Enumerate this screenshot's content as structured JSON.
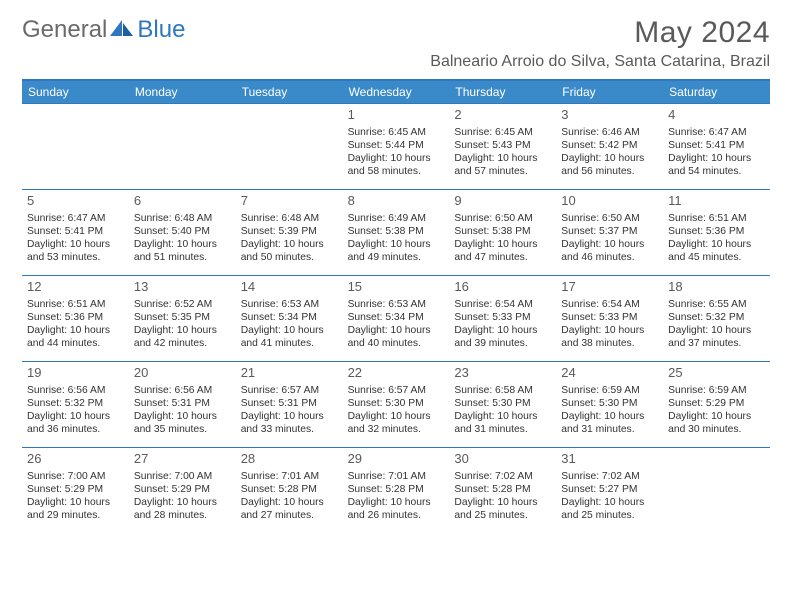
{
  "logo": {
    "text1": "General",
    "text2": "Blue"
  },
  "title": "May 2024",
  "location": "Balneario Arroio do Silva, Santa Catarina, Brazil",
  "day_headers": [
    "Sunday",
    "Monday",
    "Tuesday",
    "Wednesday",
    "Thursday",
    "Friday",
    "Saturday"
  ],
  "colors": {
    "brand_blue": "#3a8ac9",
    "rule_blue": "#2f78bf",
    "text_gray": "#5a5a5a"
  },
  "weeks": [
    [
      null,
      null,
      null,
      {
        "n": "1",
        "sr": "6:45 AM",
        "ss": "5:44 PM",
        "dl": "10 hours and 58 minutes."
      },
      {
        "n": "2",
        "sr": "6:45 AM",
        "ss": "5:43 PM",
        "dl": "10 hours and 57 minutes."
      },
      {
        "n": "3",
        "sr": "6:46 AM",
        "ss": "5:42 PM",
        "dl": "10 hours and 56 minutes."
      },
      {
        "n": "4",
        "sr": "6:47 AM",
        "ss": "5:41 PM",
        "dl": "10 hours and 54 minutes."
      }
    ],
    [
      {
        "n": "5",
        "sr": "6:47 AM",
        "ss": "5:41 PM",
        "dl": "10 hours and 53 minutes."
      },
      {
        "n": "6",
        "sr": "6:48 AM",
        "ss": "5:40 PM",
        "dl": "10 hours and 51 minutes."
      },
      {
        "n": "7",
        "sr": "6:48 AM",
        "ss": "5:39 PM",
        "dl": "10 hours and 50 minutes."
      },
      {
        "n": "8",
        "sr": "6:49 AM",
        "ss": "5:38 PM",
        "dl": "10 hours and 49 minutes."
      },
      {
        "n": "9",
        "sr": "6:50 AM",
        "ss": "5:38 PM",
        "dl": "10 hours and 47 minutes."
      },
      {
        "n": "10",
        "sr": "6:50 AM",
        "ss": "5:37 PM",
        "dl": "10 hours and 46 minutes."
      },
      {
        "n": "11",
        "sr": "6:51 AM",
        "ss": "5:36 PM",
        "dl": "10 hours and 45 minutes."
      }
    ],
    [
      {
        "n": "12",
        "sr": "6:51 AM",
        "ss": "5:36 PM",
        "dl": "10 hours and 44 minutes."
      },
      {
        "n": "13",
        "sr": "6:52 AM",
        "ss": "5:35 PM",
        "dl": "10 hours and 42 minutes."
      },
      {
        "n": "14",
        "sr": "6:53 AM",
        "ss": "5:34 PM",
        "dl": "10 hours and 41 minutes."
      },
      {
        "n": "15",
        "sr": "6:53 AM",
        "ss": "5:34 PM",
        "dl": "10 hours and 40 minutes."
      },
      {
        "n": "16",
        "sr": "6:54 AM",
        "ss": "5:33 PM",
        "dl": "10 hours and 39 minutes."
      },
      {
        "n": "17",
        "sr": "6:54 AM",
        "ss": "5:33 PM",
        "dl": "10 hours and 38 minutes."
      },
      {
        "n": "18",
        "sr": "6:55 AM",
        "ss": "5:32 PM",
        "dl": "10 hours and 37 minutes."
      }
    ],
    [
      {
        "n": "19",
        "sr": "6:56 AM",
        "ss": "5:32 PM",
        "dl": "10 hours and 36 minutes."
      },
      {
        "n": "20",
        "sr": "6:56 AM",
        "ss": "5:31 PM",
        "dl": "10 hours and 35 minutes."
      },
      {
        "n": "21",
        "sr": "6:57 AM",
        "ss": "5:31 PM",
        "dl": "10 hours and 33 minutes."
      },
      {
        "n": "22",
        "sr": "6:57 AM",
        "ss": "5:30 PM",
        "dl": "10 hours and 32 minutes."
      },
      {
        "n": "23",
        "sr": "6:58 AM",
        "ss": "5:30 PM",
        "dl": "10 hours and 31 minutes."
      },
      {
        "n": "24",
        "sr": "6:59 AM",
        "ss": "5:30 PM",
        "dl": "10 hours and 31 minutes."
      },
      {
        "n": "25",
        "sr": "6:59 AM",
        "ss": "5:29 PM",
        "dl": "10 hours and 30 minutes."
      }
    ],
    [
      {
        "n": "26",
        "sr": "7:00 AM",
        "ss": "5:29 PM",
        "dl": "10 hours and 29 minutes."
      },
      {
        "n": "27",
        "sr": "7:00 AM",
        "ss": "5:29 PM",
        "dl": "10 hours and 28 minutes."
      },
      {
        "n": "28",
        "sr": "7:01 AM",
        "ss": "5:28 PM",
        "dl": "10 hours and 27 minutes."
      },
      {
        "n": "29",
        "sr": "7:01 AM",
        "ss": "5:28 PM",
        "dl": "10 hours and 26 minutes."
      },
      {
        "n": "30",
        "sr": "7:02 AM",
        "ss": "5:28 PM",
        "dl": "10 hours and 25 minutes."
      },
      {
        "n": "31",
        "sr": "7:02 AM",
        "ss": "5:27 PM",
        "dl": "10 hours and 25 minutes."
      },
      null
    ]
  ],
  "labels": {
    "sunrise": "Sunrise:",
    "sunset": "Sunset:",
    "daylight": "Daylight:"
  }
}
